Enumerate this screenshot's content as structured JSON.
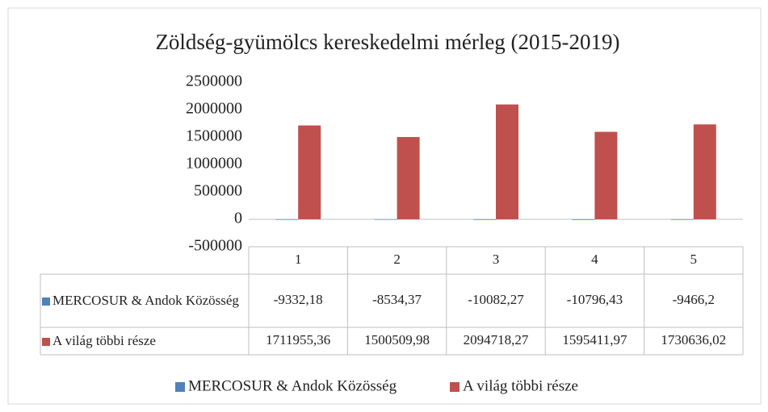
{
  "chart_data": {
    "type": "bar",
    "title": "Zöldség-gyümölcs kereskedelmi mérleg (2015-2019)",
    "categories": [
      "1",
      "2",
      "3",
      "4",
      "5"
    ],
    "series": [
      {
        "name": "MERCOSUR & Andok Közösség",
        "color": "#4f81bd",
        "values": [
          -9332.18,
          -8534.37,
          -10082.27,
          -10796.43,
          -9466.2
        ],
        "value_labels": [
          "-9332,18",
          "-8534,37",
          "-10082,27",
          "-10796,43",
          "-9466,2"
        ]
      },
      {
        "name": "A világ többi része",
        "color": "#c0504d",
        "values": [
          1711955.36,
          1500509.98,
          2094718.27,
          1595411.97,
          1730636.02
        ],
        "value_labels": [
          "1711955,36",
          "1500509,98",
          "2094718,27",
          "1595411,97",
          "1730636,02"
        ]
      }
    ],
    "ylim": [
      -500000,
      2500000
    ],
    "yticks": [
      -500000,
      0,
      500000,
      1000000,
      1500000,
      2000000,
      2500000
    ],
    "grid": false,
    "legend": "bottom"
  }
}
